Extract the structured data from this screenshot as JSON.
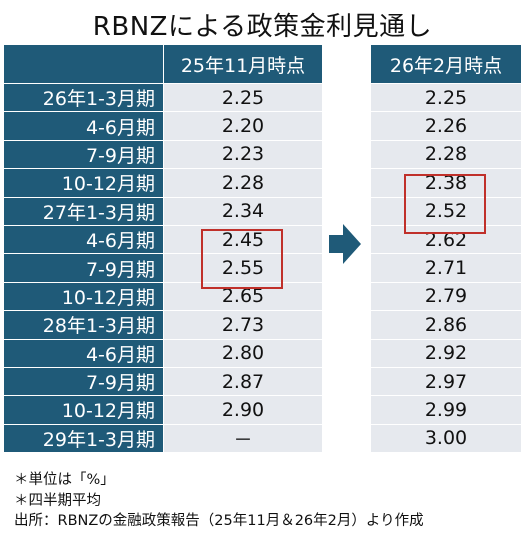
{
  "title": "RBNZによる政策金利見通し",
  "left_table": {
    "header": "25年11月時点",
    "rows": [
      {
        "period": "26年1-3月期",
        "value": "2.25"
      },
      {
        "period": "4-6月期",
        "value": "2.20"
      },
      {
        "period": "7-9月期",
        "value": "2.23"
      },
      {
        "period": "10-12月期",
        "value": "2.28"
      },
      {
        "period": "27年1-3月期",
        "value": "2.34"
      },
      {
        "period": "4-6月期",
        "value": "2.45"
      },
      {
        "period": "7-9月期",
        "value": "2.55"
      },
      {
        "period": "10-12月期",
        "value": "2.65"
      },
      {
        "period": "28年1-3月期",
        "value": "2.73"
      },
      {
        "period": "4-6月期",
        "value": "2.80"
      },
      {
        "period": "7-9月期",
        "value": "2.87"
      },
      {
        "period": "10-12月期",
        "value": "2.90"
      },
      {
        "period": "29年1-3月期",
        "value": "－"
      }
    ]
  },
  "right_table": {
    "header": "26年2月時点",
    "values": [
      "2.25",
      "2.26",
      "2.28",
      "2.38",
      "2.52",
      "2.62",
      "2.71",
      "2.79",
      "2.86",
      "2.92",
      "2.97",
      "2.99",
      "3.00"
    ]
  },
  "notes": {
    "unit": "＊単位は「%」",
    "average": "＊四半期平均",
    "source": "出所：RBNZの金融政策報告（25年11月＆26年2月）より作成"
  },
  "colors": {
    "header_bg": "#1f5a78",
    "cell_bg": "#e6e9ee",
    "highlight": "#c0302a",
    "arrow": "#1f5a78"
  }
}
